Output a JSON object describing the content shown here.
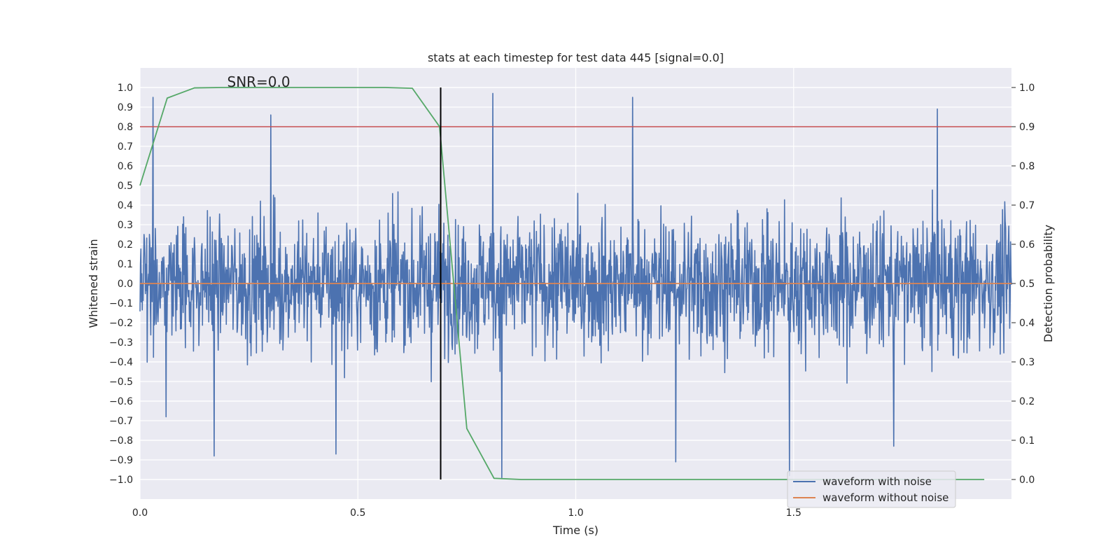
{
  "chart_data": {
    "type": "line",
    "title": "stats at each timestep for test data 445 [signal=0.0]",
    "xlabel": "Time (s)",
    "ylabel": "Whitened strain",
    "y2label": "Detection probability",
    "annotation": "SNR=0.0",
    "xlim": [
      0.0,
      2.0
    ],
    "ylim": [
      -1.1,
      1.1
    ],
    "y2lim": [
      -0.05,
      1.05
    ],
    "grid": true,
    "legend_position": "lower-right",
    "x_ticks": [
      "0.0",
      "0.5",
      "1.0",
      "1.5"
    ],
    "x_tick_values": [
      0.0,
      0.5,
      1.0,
      1.5
    ],
    "y_ticks": [
      "1.0",
      "0.9",
      "0.8",
      "0.7",
      "0.6",
      "0.5",
      "0.4",
      "0.3",
      "0.2",
      "0.1",
      "0.0",
      "−0.1",
      "−0.2",
      "−0.3",
      "−0.4",
      "−0.5",
      "−0.6",
      "−0.7",
      "−0.8",
      "−0.9",
      "−1.0"
    ],
    "y_tick_values": [
      1.0,
      0.9,
      0.8,
      0.7,
      0.6,
      0.5,
      0.4,
      0.3,
      0.2,
      0.1,
      0.0,
      -0.1,
      -0.2,
      -0.3,
      -0.4,
      -0.5,
      -0.6,
      -0.7,
      -0.8,
      -0.9,
      -1.0
    ],
    "y2_ticks": [
      "1.0",
      "0.9",
      "0.8",
      "0.7",
      "0.6",
      "0.5",
      "0.4",
      "0.3",
      "0.2",
      "0.1",
      "0.0"
    ],
    "y2_tick_values": [
      1.0,
      0.9,
      0.8,
      0.7,
      0.6,
      0.5,
      0.4,
      0.3,
      0.2,
      0.1,
      0.0
    ],
    "threshold": 0.9,
    "marker_time": 0.69,
    "series": [
      {
        "name": "waveform with noise",
        "color": "#4c72b0",
        "axis": "left",
        "kind": "noise",
        "samples": 1940,
        "amplitude_range": [
          -1.0,
          0.98
        ],
        "spikes": [
          [
            0.03,
            0.95
          ],
          [
            0.06,
            -0.68
          ],
          [
            0.3,
            0.86
          ],
          [
            0.17,
            -0.88
          ],
          [
            0.45,
            -0.87
          ],
          [
            0.81,
            0.97
          ],
          [
            0.83,
            -0.99
          ],
          [
            1.13,
            0.95
          ],
          [
            1.23,
            -0.91
          ],
          [
            1.49,
            -0.98
          ],
          [
            1.83,
            0.89
          ],
          [
            1.73,
            -0.83
          ]
        ]
      },
      {
        "name": "waveform without noise",
        "color": "#dd8452",
        "axis": "left",
        "x": [
          0.0,
          2.0
        ],
        "y": [
          0.0,
          0.0
        ]
      },
      {
        "name": "detection probability",
        "color": "#55a868",
        "axis": "right",
        "x": [
          0.0,
          0.0625,
          0.125,
          0.1875,
          0.25,
          0.3125,
          0.375,
          0.4375,
          0.5,
          0.5625,
          0.625,
          0.6875,
          0.75,
          0.8125,
          0.875,
          0.9375,
          1.0,
          1.0625,
          1.125,
          1.1875,
          1.25,
          1.3125,
          1.375,
          1.4375,
          1.5,
          1.5625,
          1.625,
          1.6875,
          1.75,
          1.8125,
          1.875,
          1.9375
        ],
        "y": [
          0.75,
          0.973,
          0.999,
          1.0,
          1.0,
          1.0,
          1.0,
          1.0,
          1.0,
          1.0,
          0.998,
          0.9,
          0.13,
          0.003,
          0.0,
          0.0,
          0.0,
          0.0,
          0.0,
          0.0,
          0.0,
          0.0,
          0.0,
          0.0,
          0.0,
          0.0,
          0.0,
          0.0,
          0.0,
          0.0,
          0.0,
          0.0
        ]
      },
      {
        "name": "threshold",
        "color": "#c44e52",
        "axis": "right"
      },
      {
        "name": "detection marker",
        "color": "#000000",
        "axis": "left"
      }
    ]
  },
  "legend": {
    "items": [
      {
        "label": "waveform with noise",
        "color": "#4c72b0"
      },
      {
        "label": "waveform without noise",
        "color": "#dd8452"
      }
    ]
  },
  "colors": {
    "plot_background": "#eaeaf2",
    "grid": "#ffffff",
    "text": "#262626"
  }
}
